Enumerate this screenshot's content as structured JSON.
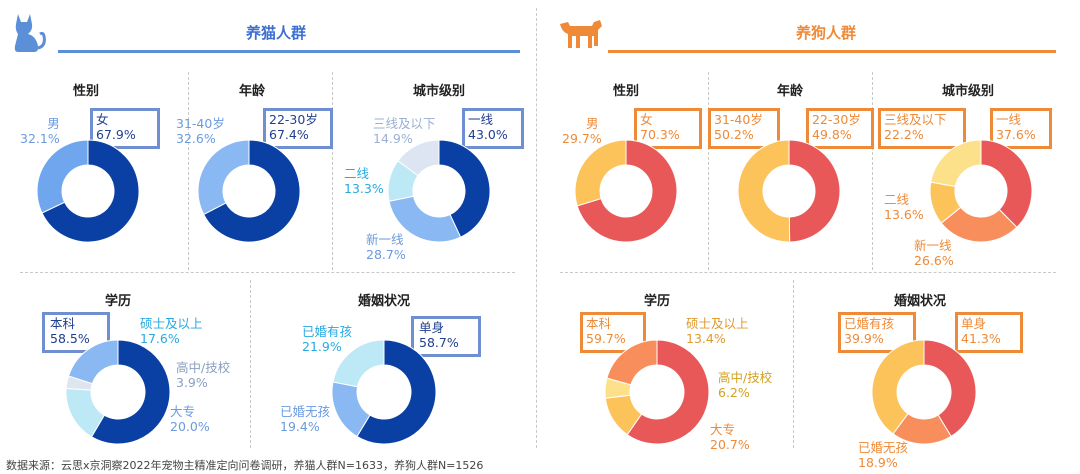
{
  "cat_section": {
    "title": "养猫人群",
    "color": "#3d6fd1"
  },
  "dog_section": {
    "title": "养狗人群",
    "color": "#ee8a38"
  },
  "footer": "数据来源：云思x京洞察2022年宠物主精准定向问卷调研，养猫人群N=1633，养狗人群N=1526",
  "chart_data": [
    {
      "id": "cat-gender",
      "type": "pie",
      "title": "性别",
      "slices": [
        {
          "label": "女",
          "value": 67.9,
          "display": "67.9%",
          "color": "#0a3fa3"
        },
        {
          "label": "男",
          "value": 32.1,
          "display": "32.1%",
          "color": "#6fa6ee"
        }
      ]
    },
    {
      "id": "cat-age",
      "type": "pie",
      "title": "年龄",
      "slices": [
        {
          "label": "22-30岁",
          "value": 67.4,
          "display": "67.4%",
          "color": "#0a3fa3"
        },
        {
          "label": "31-40岁",
          "value": 32.6,
          "display": "32.6%",
          "color": "#8ab8f2"
        }
      ]
    },
    {
      "id": "cat-city",
      "type": "pie",
      "title": "城市级别",
      "slices": [
        {
          "label": "一线",
          "value": 43.0,
          "display": "43.0%",
          "color": "#0a3fa3"
        },
        {
          "label": "新一线",
          "value": 28.7,
          "display": "28.7%",
          "color": "#8ab8f2"
        },
        {
          "label": "二线",
          "value": 13.3,
          "display": "13.3%",
          "color": "#bde8f5"
        },
        {
          "label": "三线及以下",
          "value": 14.9,
          "display": "14.9%",
          "color": "#dde5f2"
        }
      ]
    },
    {
      "id": "cat-edu",
      "type": "pie",
      "title": "学历",
      "slices": [
        {
          "label": "本科",
          "value": 58.5,
          "display": "58.5%",
          "color": "#0a3fa3"
        },
        {
          "label": "硕士及以上",
          "value": 17.6,
          "display": "17.6%",
          "color": "#bde8f5"
        },
        {
          "label": "高中/技校",
          "value": 3.9,
          "display": "3.9%",
          "color": "#dfe5ee"
        },
        {
          "label": "大专",
          "value": 20.0,
          "display": "20.0%",
          "color": "#8ab8f2"
        }
      ]
    },
    {
      "id": "cat-marital",
      "type": "pie",
      "title": "婚姻状况",
      "slices": [
        {
          "label": "单身",
          "value": 58.7,
          "display": "58.7%",
          "color": "#0a3fa3"
        },
        {
          "label": "已婚无孩",
          "value": 19.4,
          "display": "19.4%",
          "color": "#8ab8f2"
        },
        {
          "label": "已婚有孩",
          "value": 21.9,
          "display": "21.9%",
          "color": "#bde8f5"
        }
      ]
    },
    {
      "id": "dog-gender",
      "type": "pie",
      "title": "性别",
      "slices": [
        {
          "label": "女",
          "value": 70.3,
          "display": "70.3%",
          "color": "#e85858"
        },
        {
          "label": "男",
          "value": 29.7,
          "display": "29.7%",
          "color": "#fbc35a"
        }
      ]
    },
    {
      "id": "dog-age",
      "type": "pie",
      "title": "年龄",
      "slices": [
        {
          "label": "22-30岁",
          "value": 49.8,
          "display": "49.8%",
          "color": "#e85858"
        },
        {
          "label": "31-40岁",
          "value": 50.2,
          "display": "50.2%",
          "color": "#fbc35a"
        }
      ]
    },
    {
      "id": "dog-city",
      "type": "pie",
      "title": "城市级别",
      "slices": [
        {
          "label": "一线",
          "value": 37.6,
          "display": "37.6%",
          "color": "#e85858"
        },
        {
          "label": "新一线",
          "value": 26.6,
          "display": "26.6%",
          "color": "#f88e5c"
        },
        {
          "label": "二线",
          "value": 13.6,
          "display": "13.6%",
          "color": "#fbc35a"
        },
        {
          "label": "三线及以下",
          "value": 22.2,
          "display": "22.2%",
          "color": "#fde08a"
        }
      ]
    },
    {
      "id": "dog-edu",
      "type": "pie",
      "title": "学历",
      "slices": [
        {
          "label": "本科",
          "value": 59.7,
          "display": "59.7%",
          "color": "#e85858"
        },
        {
          "label": "硕士及以上",
          "value": 13.4,
          "display": "13.4%",
          "color": "#fbc35a"
        },
        {
          "label": "高中/技校",
          "value": 6.2,
          "display": "6.2%",
          "color": "#fde08a"
        },
        {
          "label": "大专",
          "value": 20.7,
          "display": "20.7%",
          "color": "#f88e5c"
        }
      ]
    },
    {
      "id": "dog-marital",
      "type": "pie",
      "title": "婚姻状况",
      "slices": [
        {
          "label": "单身",
          "value": 41.3,
          "display": "41.3%",
          "color": "#e85858"
        },
        {
          "label": "已婚无孩",
          "value": 18.9,
          "display": "18.9%",
          "color": "#f88e5c"
        },
        {
          "label": "已婚有孩",
          "value": 39.9,
          "display": "39.9%",
          "color": "#fbc35a"
        }
      ]
    }
  ]
}
